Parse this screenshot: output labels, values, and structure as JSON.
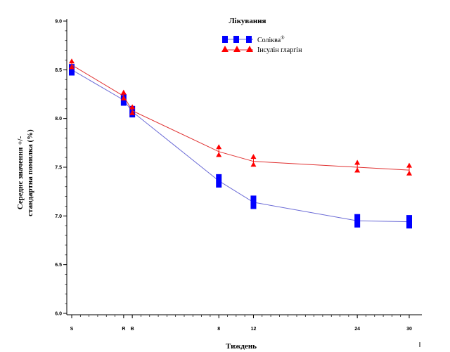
{
  "chart_data": {
    "type": "line",
    "title": "",
    "xlabel": "Тиждень",
    "ylabel_lines": [
      "Середнє значення +/-",
      "стандартна помилка (%)"
    ],
    "ylim": [
      6.0,
      9.0
    ],
    "y_ticks": [
      "6.0",
      "6.5",
      "7.0",
      "7.5",
      "8.0",
      "8.5",
      "9.0"
    ],
    "x_ticks": [
      {
        "label": "S",
        "value": -9
      },
      {
        "label": "R",
        "value": -3
      },
      {
        "label": "B",
        "value": -2
      },
      {
        "label": "8",
        "value": 8
      },
      {
        "label": "12",
        "value": 12
      },
      {
        "label": "24",
        "value": 24
      },
      {
        "label": "30",
        "value": 30
      }
    ],
    "xlim": [
      -9,
      30
    ],
    "legend": {
      "title": "Лікування",
      "position": "top-center"
    },
    "series": [
      {
        "name": "Соліква",
        "name_superscript": "®",
        "color": "#0000ff",
        "line_color": "#6b6bd6",
        "marker": "square",
        "x": [
          -9,
          -3,
          -2,
          8,
          12,
          24,
          30
        ],
        "y": [
          8.5,
          8.19,
          8.07,
          7.36,
          7.14,
          6.95,
          6.94
        ],
        "err": [
          0.03,
          0.03,
          0.03,
          0.04,
          0.04,
          0.04,
          0.04
        ]
      },
      {
        "name": "Інсулін гларгін",
        "color": "#ff0000",
        "line_color": "#e03030",
        "marker": "triangle",
        "x": [
          -9,
          -3,
          -2,
          8,
          12,
          24,
          30
        ],
        "y": [
          8.55,
          8.23,
          8.08,
          7.66,
          7.56,
          7.5,
          7.47
        ],
        "err": [
          0.03,
          0.03,
          0.03,
          0.04,
          0.04,
          0.04,
          0.04
        ]
      }
    ]
  }
}
